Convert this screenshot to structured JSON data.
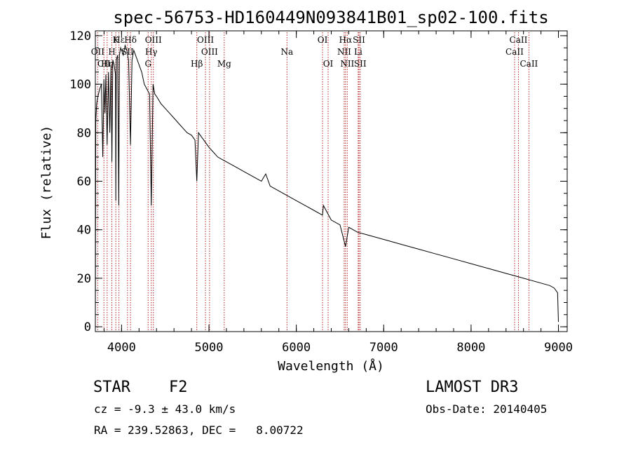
{
  "chart_data": {
    "type": "line",
    "title": "spec-56753-HD160449N093841B01_sp02-100.fits",
    "xlabel": "Wavelength (Å)",
    "ylabel": "Flux (relative)",
    "xlim": [
      3700,
      9100
    ],
    "ylim": [
      -2,
      122
    ],
    "x_ticks": [
      4000,
      5000,
      6000,
      7000,
      8000,
      9000
    ],
    "y_ticks": [
      0,
      20,
      40,
      60,
      80,
      100,
      120
    ],
    "grid": false,
    "series": [
      {
        "name": "spectrum",
        "x": [
          3700,
          3705,
          3715,
          3730,
          3750,
          3770,
          3785,
          3798,
          3810,
          3820,
          3835,
          3850,
          3865,
          3880,
          3889,
          3900,
          3915,
          3930,
          3934,
          3940,
          3955,
          3968,
          3975,
          3990,
          4000,
          4020,
          4040,
          4060,
          4080,
          4102,
          4120,
          4140,
          4160,
          4180,
          4200,
          4230,
          4260,
          4290,
          4320,
          4340,
          4360,
          4380,
          4400,
          4450,
          4500,
          4550,
          4600,
          4650,
          4700,
          4750,
          4800,
          4840,
          4861,
          4880,
          4920,
          4960,
          5000,
          5050,
          5100,
          5150,
          5200,
          5300,
          5400,
          5500,
          5600,
          5650,
          5700,
          5800,
          5900,
          6000,
          6100,
          6200,
          6300,
          6310,
          6400,
          6500,
          6563,
          6600,
          6700,
          6800,
          7000,
          7200,
          7400,
          7600,
          7800,
          8000,
          8200,
          8400,
          8500,
          8600,
          8700,
          8800,
          8900,
          8950,
          8990,
          9000
        ],
        "values": [
          0,
          85,
          92,
          95,
          98,
          100,
          70,
          102,
          88,
          104,
          75,
          105,
          80,
          108,
          68,
          110,
          108,
          104,
          52,
          110,
          112,
          50,
          112,
          115,
          114,
          112,
          116,
          114,
          110,
          75,
          110,
          114,
          112,
          110,
          108,
          105,
          100,
          98,
          96,
          50,
          100,
          96,
          95,
          92,
          90,
          88,
          86,
          84,
          82,
          80,
          79,
          77,
          60,
          80,
          78,
          76,
          74,
          72,
          70,
          69,
          68,
          66,
          64,
          62,
          60,
          63,
          58,
          56,
          54,
          52,
          50,
          48,
          46,
          50,
          44,
          42,
          33,
          41,
          39,
          38,
          36,
          34,
          32,
          30,
          28,
          26,
          24,
          22,
          21,
          20,
          19,
          18,
          17,
          16,
          14,
          2
        ]
      }
    ],
    "lines": [
      {
        "name": "Hε",
        "wl": 3970,
        "row": 0
      },
      {
        "name": "K",
        "wl": 3934,
        "row": 0
      },
      {
        "name": "Hδ",
        "wl": 4102,
        "row": 0
      },
      {
        "name": "OIII",
        "wl": 4364,
        "row": 0
      },
      {
        "name": "OIII",
        "wl": 4960,
        "row": 0
      },
      {
        "name": "OI",
        "wl": 6300,
        "row": 0
      },
      {
        "name": "Hα",
        "wl": 6563,
        "row": 0
      },
      {
        "name": "SII",
        "wl": 6717,
        "row": 0
      },
      {
        "name": "CaII",
        "wl": 8542,
        "row": 0
      },
      {
        "name": "OII",
        "wl": 3727,
        "row": 1
      },
      {
        "name": "H",
        "wl": 3889,
        "row": 1
      },
      {
        "name": "SII",
        "wl": 4068,
        "row": 1
      },
      {
        "name": "Hγ",
        "wl": 4340,
        "row": 1
      },
      {
        "name": "OIII",
        "wl": 5007,
        "row": 1
      },
      {
        "name": "Na",
        "wl": 5893,
        "row": 1
      },
      {
        "name": "NII",
        "wl": 6548,
        "row": 1
      },
      {
        "name": "Li",
        "wl": 6708,
        "row": 1
      },
      {
        "name": "CaII",
        "wl": 8498,
        "row": 1
      },
      {
        "name": "CII",
        "wl": 3798,
        "row": 2
      },
      {
        "name": "Hη",
        "wl": 3835,
        "row": 2
      },
      {
        "name": "G",
        "wl": 4304,
        "row": 2
      },
      {
        "name": "Hβ",
        "wl": 4861,
        "row": 2
      },
      {
        "name": "Mg",
        "wl": 5175,
        "row": 2
      },
      {
        "name": "OI",
        "wl": 6364,
        "row": 2
      },
      {
        "name": "NII",
        "wl": 6583,
        "row": 2
      },
      {
        "name": "SII",
        "wl": 6731,
        "row": 2
      },
      {
        "name": "CaII",
        "wl": 8662,
        "row": 2
      }
    ]
  },
  "info": {
    "object_class": "STAR",
    "subclass": "F2",
    "survey": "LAMOST DR3",
    "redshift": "cz = -9.3 ± 43.0 km/s",
    "obs_date": "Obs-Date: 20140405",
    "coords": "RA = 239.52863, DEC =   8.00722"
  }
}
